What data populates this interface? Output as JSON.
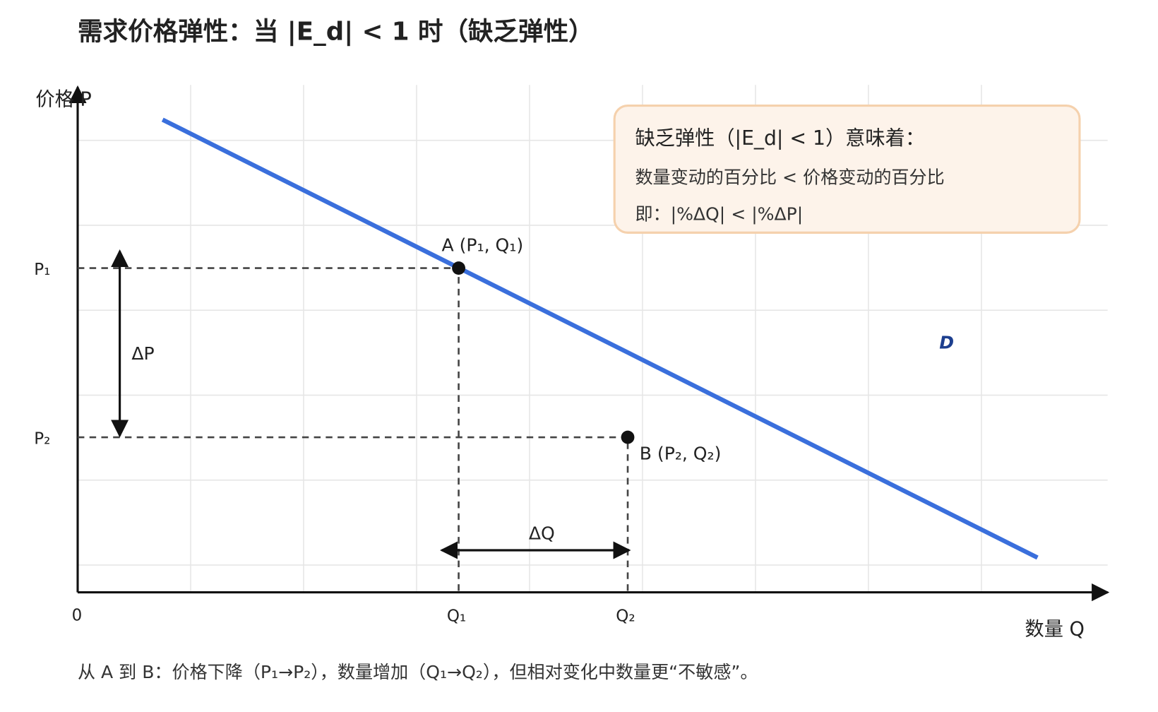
{
  "title": "需求价格弹性：当 |E_d| < 1 时（缺乏弹性）",
  "axes": {
    "y_label": "价格 P",
    "x_label": "数量 Q",
    "origin": "0",
    "p1": "P₁",
    "p2": "P₂",
    "q1": "Q₁",
    "q2": "Q₂"
  },
  "changes": {
    "delta_p": "ΔP",
    "delta_q": "ΔQ"
  },
  "points": {
    "a": "A (P₁, Q₁)",
    "b": "B (P₂, Q₂)"
  },
  "curve_label": "D",
  "callout": {
    "heading": "缺乏弹性（|E_d| < 1）意味着：",
    "line1": "数量变动的百分比 < 价格变动的百分比",
    "line2": "即：|%ΔQ| < |%ΔP|"
  },
  "footer": "从 A 到 B：价格下降（P₁→P₂），数量增加（Q₁→Q₂），但相对变化中数量更“不敏感”。"
}
